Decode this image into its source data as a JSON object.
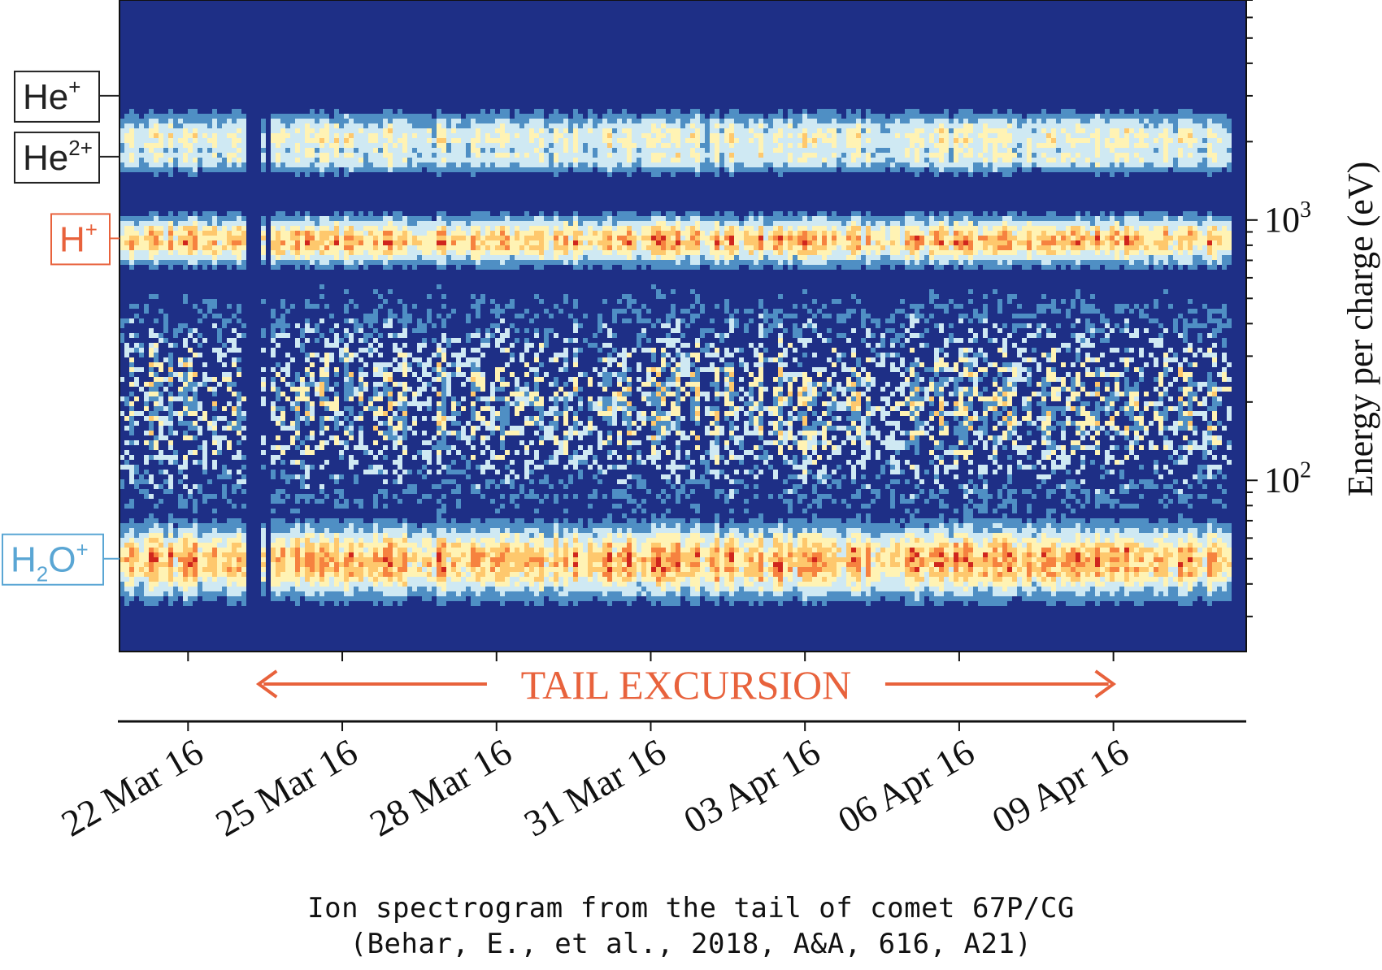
{
  "chart_data": {
    "type": "heatmap",
    "ylabel": "Energy per charge (eV)",
    "yscale": "log",
    "ylim": [
      22,
      7000
    ],
    "y_ticks": [
      {
        "value": 100,
        "base": "10",
        "exp": "2"
      },
      {
        "value": 1000,
        "base": "10",
        "exp": "3"
      }
    ],
    "x_range": [
      "2016-03-20T16:00",
      "2016-04-11T14:00"
    ],
    "x_ticks": [
      {
        "date": "2016-03-22",
        "label": "22 Mar 16"
      },
      {
        "date": "2016-03-25",
        "label": "25 Mar 16"
      },
      {
        "date": "2016-03-28",
        "label": "28 Mar 16"
      },
      {
        "date": "2016-03-31",
        "label": "31 Mar 16"
      },
      {
        "date": "2016-04-03",
        "label": "03 Apr 16"
      },
      {
        "date": "2016-04-06",
        "label": "06 Apr 16"
      },
      {
        "date": "2016-04-09",
        "label": "09 Apr 16"
      }
    ],
    "annotation": {
      "text": "TAIL EXCURSION",
      "from": "2016-03-23T09:00",
      "to": "2016-04-09T00:00",
      "color": "#e8623c"
    },
    "ion_labels": [
      {
        "base": "He",
        "sup": "+",
        "sub": "",
        "energy": 3000,
        "color": "#222222"
      },
      {
        "base": "He",
        "sup": "2+",
        "sub": "",
        "energy": 1750,
        "color": "#222222"
      },
      {
        "base": "H",
        "sup": "+",
        "sub": "",
        "energy": 850,
        "color": "#e8623c"
      },
      {
        "base": "H",
        "sup": "+",
        "sub": "2",
        "extra": "O",
        "energy": 50,
        "color": "#5aa6d4"
      }
    ],
    "colormap": [
      "#1e2f86",
      "#4f8fc4",
      "#cfe9f3",
      "#fff3b4",
      "#fec86d",
      "#f6823f",
      "#d0261d"
    ],
    "bands": [
      {
        "name": "He+",
        "energy": 2100,
        "width": 0.09,
        "intensity": 0.55
      },
      {
        "name": "He2+",
        "energy": 1800,
        "width": 0.06,
        "intensity": 0.5
      },
      {
        "name": "H+",
        "energy": 850,
        "width": 0.08,
        "intensity": 0.85
      },
      {
        "name": "H2O+",
        "energy": 50,
        "width": 0.12,
        "intensity": 0.9
      }
    ]
  },
  "caption": {
    "line1": "Ion spectrogram from the tail of comet 67P/CG",
    "line2": "(Behar, E., et al., 2018, A&A, 616, A21)"
  }
}
